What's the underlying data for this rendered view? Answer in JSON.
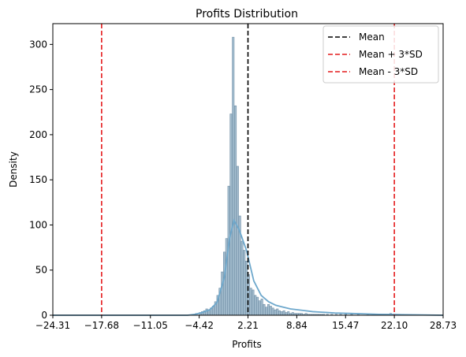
{
  "chart_data": {
    "type": "bar",
    "title": "Profits Distribution",
    "xlabel": "Profits",
    "ylabel": "Density",
    "xlim": [
      -24.31,
      28.73
    ],
    "ylim": [
      0,
      323
    ],
    "xticks": [
      -24.31,
      -17.68,
      -11.05,
      -4.42,
      2.21,
      8.84,
      15.47,
      22.1,
      28.73
    ],
    "xtick_labels": [
      "−24.31",
      "−17.68",
      "−11.05",
      "−4.42",
      "2.21",
      "8.84",
      "15.47",
      "22.10",
      "28.73"
    ],
    "yticks": [
      0,
      50,
      100,
      150,
      200,
      250,
      300
    ],
    "ytick_labels": [
      "0",
      "50",
      "100",
      "150",
      "200",
      "250",
      "300"
    ],
    "grid": false,
    "legend_position": "top-right",
    "colors": {
      "bars_fill": "#a6bfd0",
      "bars_stroke": "#6f8ea6",
      "kde": "#6ea8cc",
      "mean": "#000000",
      "sd": "#e41a1c"
    },
    "histogram": {
      "x": [
        -5.3,
        -4.8,
        -4.3,
        -4.0,
        -3.7,
        -3.4,
        -3.1,
        -2.8,
        -2.5,
        -2.2,
        -1.9,
        -1.6,
        -1.3,
        -1.0,
        -0.7,
        -0.4,
        -0.1,
        0.2,
        0.5,
        0.8,
        1.1,
        1.4,
        1.7,
        2.0,
        2.3,
        2.6,
        2.9,
        3.2,
        3.5,
        3.8,
        4.1,
        4.4,
        4.7,
        5.0,
        5.3,
        5.6,
        5.9,
        6.2,
        6.5,
        6.8,
        7.1,
        7.4,
        7.7,
        8.0,
        8.3,
        8.6,
        8.9,
        9.2,
        9.5,
        9.8,
        10.1,
        10.4,
        10.7,
        11.0,
        11.3,
        11.6,
        11.9,
        12.2,
        12.5,
        13.0,
        13.6,
        14.2,
        14.8,
        15.5,
        16.3,
        17.2,
        18.5,
        20.0,
        21.6,
        22.5
      ],
      "values": [
        1,
        2,
        3,
        4,
        5,
        7,
        6,
        8,
        10,
        15,
        22,
        30,
        48,
        70,
        85,
        143,
        223,
        308,
        232,
        165,
        110,
        82,
        72,
        60,
        45,
        30,
        28,
        22,
        20,
        16,
        18,
        12,
        9,
        12,
        10,
        8,
        6,
        7,
        5,
        4,
        5,
        3,
        4,
        2,
        3,
        2,
        2,
        2,
        2,
        1,
        2,
        1,
        1,
        1,
        1,
        1,
        1,
        1,
        1,
        1,
        1,
        1,
        1,
        1,
        1,
        1,
        1,
        1,
        2,
        1
      ]
    },
    "series": [
      {
        "name": "",
        "kind": "kde",
        "x": [
          -24.31,
          -15,
          -8,
          -6,
          -5,
          -4,
          -3,
          -2,
          -1,
          -0.3,
          0.3,
          1,
          2,
          3,
          4,
          5,
          6,
          7,
          8,
          9,
          10,
          11,
          12,
          13,
          14,
          16,
          18,
          20,
          22,
          24,
          26,
          28.73
        ],
        "y": [
          0,
          0,
          0,
          0,
          1,
          3,
          6,
          14,
          42,
          85,
          105,
          95,
          72,
          38,
          22,
          15,
          11,
          9,
          7,
          6,
          5,
          4,
          3.5,
          3,
          2.5,
          2,
          1.5,
          1,
          0.8,
          0.5,
          0.3,
          0
        ]
      }
    ],
    "vlines": [
      {
        "name": "Mean",
        "x": 2.21,
        "style": "dashed",
        "color": "#000000"
      },
      {
        "name": "Mean + 3*SD",
        "x": 22.1,
        "style": "dashed",
        "color": "#e41a1c"
      },
      {
        "name": "Mean - 3*SD",
        "x": -17.68,
        "style": "dashed",
        "color": "#e41a1c"
      }
    ],
    "legend": [
      "Mean",
      "Mean + 3*SD",
      "Mean - 3*SD"
    ]
  }
}
